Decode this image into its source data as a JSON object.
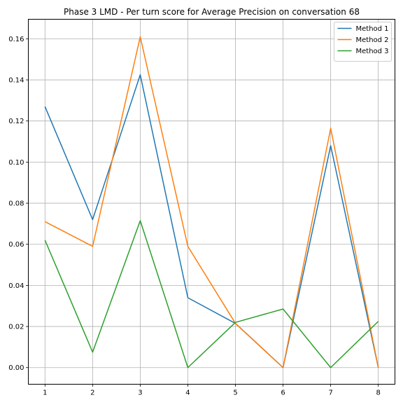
{
  "chart_data": {
    "type": "line",
    "title": "Phase 3 LMD - Per turn score for Average Precision on conversation 68",
    "xlabel": "",
    "ylabel": "",
    "x": [
      1,
      2,
      3,
      4,
      5,
      6,
      7,
      8
    ],
    "xticks": [
      1,
      2,
      3,
      4,
      5,
      6,
      7,
      8
    ],
    "xtick_labels": [
      "1",
      "2",
      "3",
      "4",
      "5",
      "6",
      "7",
      "8"
    ],
    "yticks": [
      0.0,
      0.02,
      0.04,
      0.06,
      0.08,
      0.1,
      0.12,
      0.14,
      0.16
    ],
    "ytick_labels": [
      "0.00",
      "0.02",
      "0.04",
      "0.06",
      "0.08",
      "0.10",
      "0.12",
      "0.14",
      "0.16"
    ],
    "xlim": [
      0.65,
      8.35
    ],
    "ylim": [
      -0.0081,
      0.1695
    ],
    "grid": true,
    "legend_position": "top-right",
    "series": [
      {
        "name": "Method 1",
        "color": "#1f77b4",
        "values": [
          0.127,
          0.072,
          0.1425,
          0.034,
          0.0215,
          0.0,
          0.108,
          0.0
        ]
      },
      {
        "name": "Method 2",
        "color": "#ff7f0e",
        "values": [
          0.071,
          0.059,
          0.161,
          0.059,
          0.0215,
          0.0,
          0.1165,
          0.0
        ]
      },
      {
        "name": "Method 3",
        "color": "#2ca02c",
        "values": [
          0.062,
          0.0075,
          0.0715,
          0.0,
          0.022,
          0.0285,
          0.0,
          0.0225
        ]
      }
    ]
  }
}
